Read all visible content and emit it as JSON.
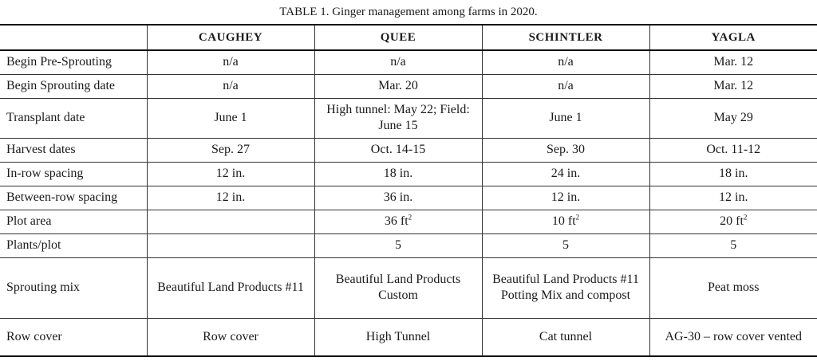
{
  "caption": "TABLE 1. Ginger management among farms in 2020.",
  "columns": [
    "CAUGHEY",
    "QUEE",
    "SCHINTLER",
    "YAGLA"
  ],
  "rows": [
    {
      "label": "Begin Pre-Sprouting",
      "cells": [
        "n/a",
        "n/a",
        "n/a",
        "Mar. 12"
      ]
    },
    {
      "label": "Begin Sprouting date",
      "cells": [
        "n/a",
        "Mar. 20",
        "n/a",
        "Mar. 12"
      ]
    },
    {
      "label": "Transplant date",
      "cells": [
        "June 1",
        "High tunnel: May 22; Field: June 15",
        "June 1",
        "May 29"
      ]
    },
    {
      "label": "Harvest dates",
      "cells": [
        "Sep. 27",
        "Oct. 14-15",
        "Sep. 30",
        "Oct. 11-12"
      ]
    },
    {
      "label": "In-row spacing",
      "cells": [
        "12 in.",
        "18 in.",
        "24 in.",
        "18 in."
      ]
    },
    {
      "label": "Between-row spacing",
      "cells": [
        "12 in.",
        "36 in.",
        "12 in.",
        "12 in."
      ]
    },
    {
      "label": "Plot area",
      "cells": [
        "",
        "36 ft",
        "10 ft",
        "20 ft"
      ],
      "sup": "2"
    },
    {
      "label": "Plants/plot",
      "cells": [
        "",
        "5",
        "5",
        "5"
      ]
    },
    {
      "label": "Sprouting mix",
      "cells": [
        "Beautiful Land Products #11",
        "Beautiful Land Products Custom",
        "Beautiful Land Products #11 Potting Mix and compost",
        "Peat moss"
      ]
    },
    {
      "label": "Row cover",
      "cells": [
        "Row cover",
        "High Tunnel",
        "Cat tunnel",
        "AG-30 – row cover vented"
      ]
    }
  ]
}
